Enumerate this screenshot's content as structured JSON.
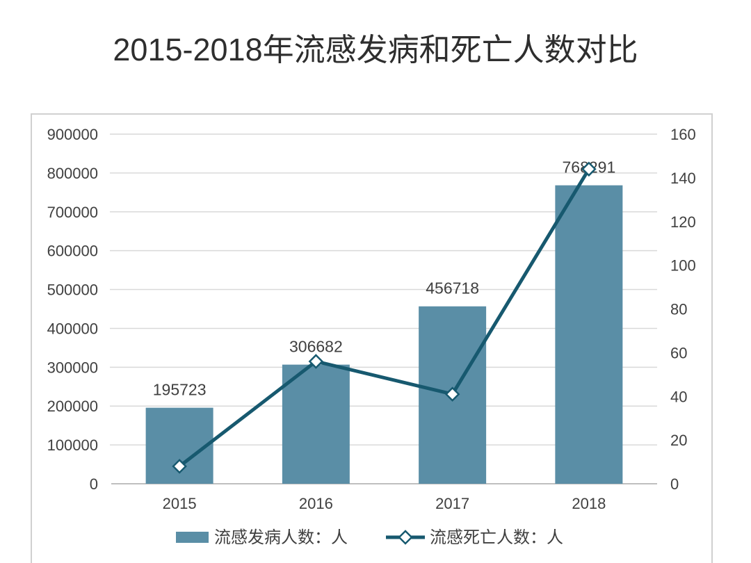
{
  "chart_data": {
    "type": "bar",
    "title": "2015-2018年流感发病和死亡人数对比",
    "categories": [
      "2015",
      "2016",
      "2017",
      "2018"
    ],
    "series": [
      {
        "name": "流感发病人数：人",
        "type": "bar",
        "axis": "left",
        "color": "#5a8ea6",
        "data_labels": true,
        "values": [
          195723,
          306682,
          456718,
          768291
        ]
      },
      {
        "name": "流感死亡人数：人",
        "type": "line",
        "axis": "right",
        "color": "#17596f",
        "marker": "diamond",
        "data_labels": false,
        "values": [
          8,
          56,
          41,
          144
        ]
      }
    ],
    "y_left": {
      "ylim": [
        0,
        900000
      ],
      "ticks": [
        0,
        100000,
        200000,
        300000,
        400000,
        500000,
        600000,
        700000,
        800000,
        900000
      ]
    },
    "y_right": {
      "ylim": [
        0,
        160
      ],
      "ticks": [
        0,
        20,
        40,
        60,
        80,
        100,
        120,
        140,
        160
      ]
    },
    "grid": true,
    "legend": "bottom"
  }
}
